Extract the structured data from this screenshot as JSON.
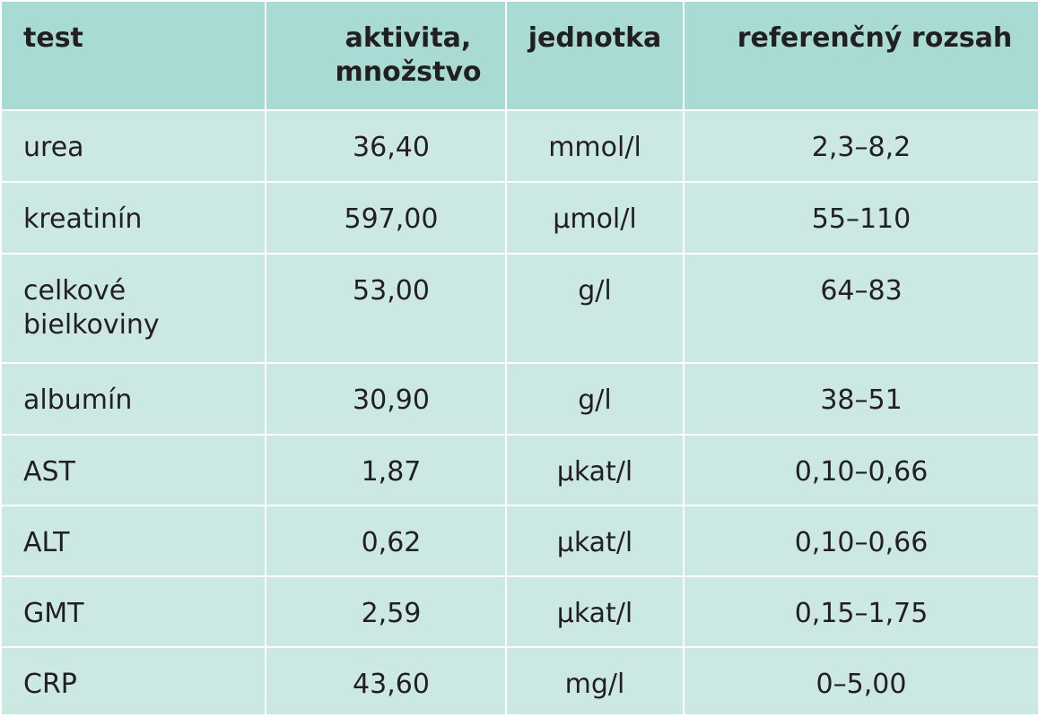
{
  "table": {
    "headers": {
      "test": "test",
      "activity": "aktivita, množstvo",
      "unit": "jednotka",
      "reference": "referenčný rozsah"
    },
    "rows": [
      {
        "test": "urea",
        "value": "36,40",
        "unit": "mmol/l",
        "reference": "2,3–8,2"
      },
      {
        "test": "kreatinín",
        "value": "597,00",
        "unit": "µmol/l",
        "reference": "55–110"
      },
      {
        "test": "celkové bielkoviny",
        "value": "53,00",
        "unit": "g/l",
        "reference": "64–83"
      },
      {
        "test": "albumín",
        "value": "30,90",
        "unit": "g/l",
        "reference": "38–51"
      },
      {
        "test": "AST",
        "value": "1,87",
        "unit": "µkat/l",
        "reference": "0,10–0,66"
      },
      {
        "test": "ALT",
        "value": "0,62",
        "unit": "µkat/l",
        "reference": "0,10–0,66"
      },
      {
        "test": "GMT",
        "value": "2,59",
        "unit": "µkat/l",
        "reference": "0,15–1,75"
      },
      {
        "test": "CRP",
        "value": "43,60",
        "unit": "mg/l",
        "reference": "0–5,00"
      }
    ]
  },
  "colors": {
    "header_background": "#a9dbd5",
    "row_background": "#cce8e3",
    "grid_lines": "#ffffff",
    "text": "#231f20"
  }
}
